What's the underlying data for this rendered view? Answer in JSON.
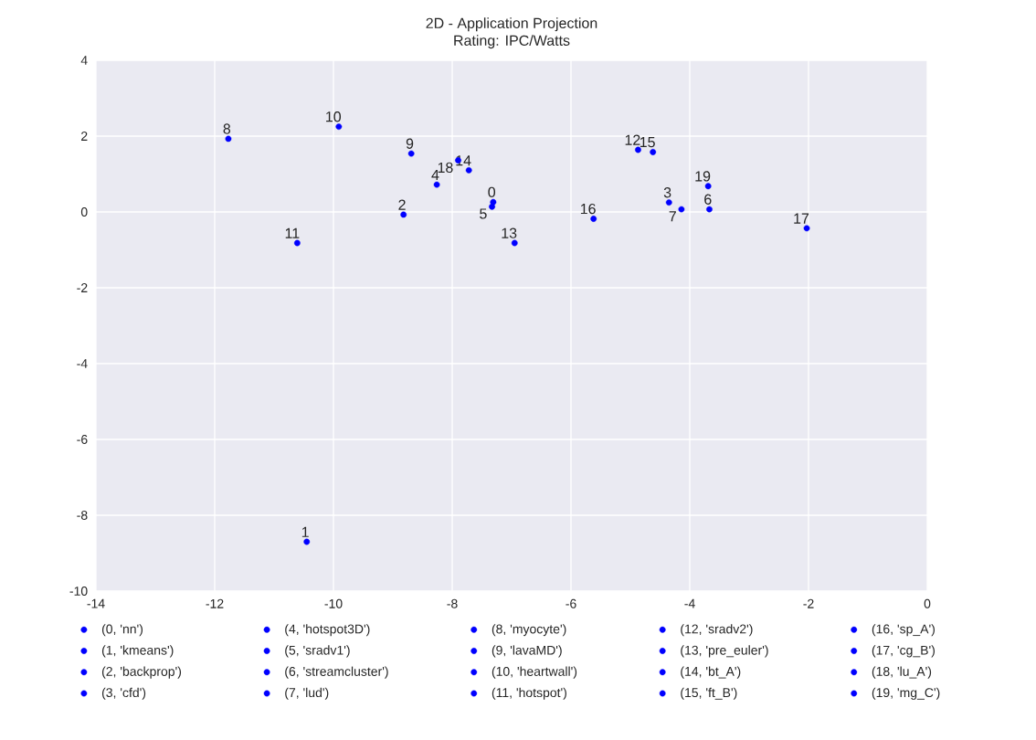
{
  "chart_data": {
    "type": "scatter",
    "title": "2D - Application Projection",
    "subtitle": "Rating: IPC/Watts",
    "xlim": [
      -14,
      0
    ],
    "ylim": [
      -10,
      4
    ],
    "xticks": [
      -14,
      -12,
      -10,
      -8,
      -6,
      -4,
      -2,
      0
    ],
    "yticks": [
      -10,
      -8,
      -6,
      -4,
      -2,
      0,
      2,
      4
    ],
    "grid": true,
    "legend": "bottom",
    "marker": "circle",
    "series": [
      {
        "name": "(0, 'nn')",
        "color": "#0000ff",
        "x": [
          -7.31
        ],
        "values": [
          0.26
        ]
      },
      {
        "name": "(1, 'kmeans')",
        "color": "#0000ff",
        "x": [
          -10.45
        ],
        "values": [
          -8.7
        ]
      },
      {
        "name": "(2, 'backprop')",
        "color": "#0000ff",
        "x": [
          -8.82
        ],
        "values": [
          -0.07
        ]
      },
      {
        "name": "(3, 'cfd')",
        "color": "#0000ff",
        "x": [
          -4.35
        ],
        "values": [
          0.25
        ]
      },
      {
        "name": "(4, 'hotspot3D')",
        "color": "#0000ff",
        "x": [
          -8.26
        ],
        "values": [
          0.72
        ]
      },
      {
        "name": "(5, 'sradv1')",
        "color": "#0000ff",
        "x": [
          -7.33
        ],
        "values": [
          0.14
        ]
      },
      {
        "name": "(6, 'streamcluster')",
        "color": "#0000ff",
        "x": [
          -3.67
        ],
        "values": [
          0.07
        ]
      },
      {
        "name": "(7, 'lud')",
        "color": "#0000ff",
        "x": [
          -4.14
        ],
        "values": [
          0.07
        ]
      },
      {
        "name": "(8, 'myocyte')",
        "color": "#0000ff",
        "x": [
          -11.77
        ],
        "values": [
          1.93
        ]
      },
      {
        "name": "(9, 'lavaMD')",
        "color": "#0000ff",
        "x": [
          -8.69
        ],
        "values": [
          1.54
        ]
      },
      {
        "name": "(10, 'heartwall')",
        "color": "#0000ff",
        "x": [
          -9.91
        ],
        "values": [
          2.25
        ]
      },
      {
        "name": "(11, 'hotspot')",
        "color": "#0000ff",
        "x": [
          -10.61
        ],
        "values": [
          -0.82
        ]
      },
      {
        "name": "(12, 'sradv2')",
        "color": "#0000ff",
        "x": [
          -4.87
        ],
        "values": [
          1.64
        ]
      },
      {
        "name": "(13, 'pre_euler')",
        "color": "#0000ff",
        "x": [
          -6.95
        ],
        "values": [
          -0.82
        ]
      },
      {
        "name": "(14, 'bt_A')",
        "color": "#0000ff",
        "x": [
          -7.72
        ],
        "values": [
          1.1
        ]
      },
      {
        "name": "(15, 'ft_B')",
        "color": "#0000ff",
        "x": [
          -4.62
        ],
        "values": [
          1.58
        ]
      },
      {
        "name": "(16, 'sp_A')",
        "color": "#0000ff",
        "x": [
          -5.62
        ],
        "values": [
          -0.18
        ]
      },
      {
        "name": "(17, 'cg_B')",
        "color": "#0000ff",
        "x": [
          -2.03
        ],
        "values": [
          -0.43
        ]
      },
      {
        "name": "(18, 'lu_A')",
        "color": "#0000ff",
        "x": [
          -7.9
        ],
        "values": [
          1.36
        ]
      },
      {
        "name": "(19, 'mg_C')",
        "color": "#0000ff",
        "x": [
          -3.69
        ],
        "values": [
          0.68
        ]
      }
    ],
    "annotations": [
      {
        "text": "0",
        "x": -7.31,
        "y": 0.26
      },
      {
        "text": "1",
        "x": -10.45,
        "y": -8.7
      },
      {
        "text": "2",
        "x": -8.82,
        "y": -0.07
      },
      {
        "text": "3",
        "x": -4.35,
        "y": 0.25
      },
      {
        "text": "4",
        "x": -8.26,
        "y": 0.72
      },
      {
        "text": "5",
        "x": -7.33,
        "y": 0.14
      },
      {
        "text": "6",
        "x": -3.67,
        "y": 0.07
      },
      {
        "text": "7",
        "x": -4.14,
        "y": 0.07
      },
      {
        "text": "8",
        "x": -11.77,
        "y": 1.93
      },
      {
        "text": "9",
        "x": -8.69,
        "y": 1.54
      },
      {
        "text": "10",
        "x": -9.91,
        "y": 2.25
      },
      {
        "text": "11",
        "x": -10.61,
        "y": -0.82
      },
      {
        "text": "12",
        "x": -4.87,
        "y": 1.64
      },
      {
        "text": "13",
        "x": -6.95,
        "y": -0.82
      },
      {
        "text": "14",
        "x": -7.72,
        "y": 1.1
      },
      {
        "text": "15",
        "x": -4.62,
        "y": 1.58
      },
      {
        "text": "16",
        "x": -5.62,
        "y": -0.18
      },
      {
        "text": "17",
        "x": -2.03,
        "y": -0.43
      },
      {
        "text": "18",
        "x": -7.9,
        "y": 1.36
      },
      {
        "text": "19",
        "x": -3.69,
        "y": 0.68
      }
    ]
  }
}
